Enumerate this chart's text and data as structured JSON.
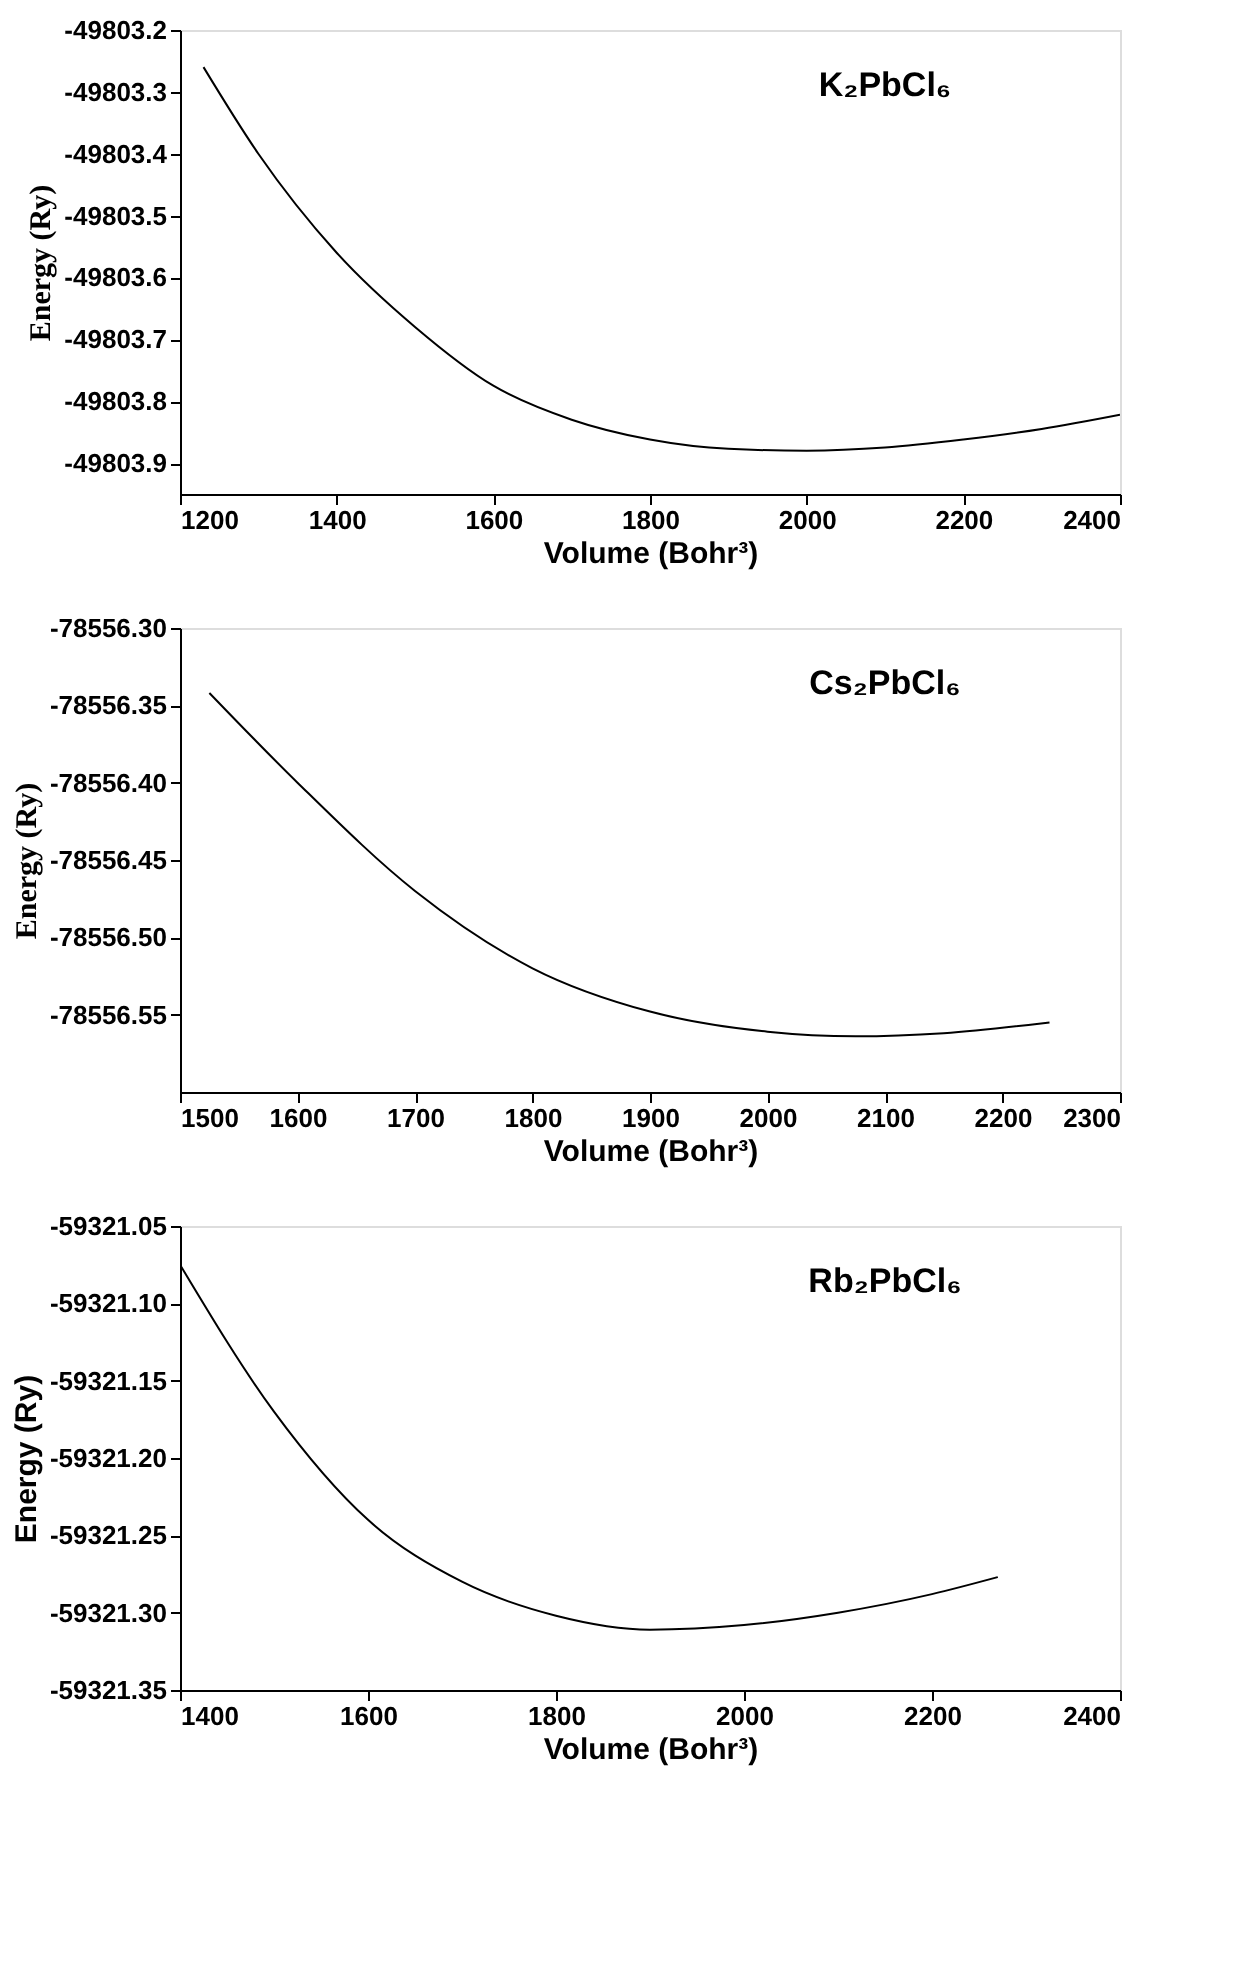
{
  "chart_data": [
    {
      "type": "line",
      "xlabel": "Volume (Bohr³)",
      "ylabel": "Energy (Ry)",
      "annotations": [
        "K₂PbCl₆"
      ],
      "marker": "none",
      "line_style": "solid",
      "grid": false,
      "x": [
        1230,
        1300,
        1400,
        1500,
        1600,
        1700,
        1800,
        1900,
        2000,
        2100,
        2200,
        2300,
        2400
      ],
      "series": [
        {
          "color": "#000000",
          "values": [
            -49803.26,
            -49803.4,
            -49803.56,
            -49803.68,
            -49803.775,
            -49803.83,
            -49803.862,
            -49803.877,
            -49803.88,
            -49803.875,
            -49803.862,
            -49803.845,
            -49803.822
          ]
        }
      ],
      "xlim": [
        1200,
        2400
      ],
      "xticks": [
        1200,
        1400,
        1600,
        1800,
        2000,
        2200,
        2400
      ],
      "ylim": [
        -49803.95,
        -49803.2
      ],
      "yticks": [
        -49803.2,
        -49803.3,
        -49803.4,
        -49803.5,
        -49803.6,
        -49803.7,
        -49803.8,
        -49803.9
      ]
    },
    {
      "type": "line",
      "xlabel": "Volume (Bohr³)",
      "ylabel": "Energy (Ry)",
      "annotations": [
        "Cs₂PbCl₆"
      ],
      "marker": "none",
      "line_style": "solid",
      "grid": false,
      "x": [
        1525,
        1600,
        1700,
        1800,
        1900,
        2000,
        2075,
        2150,
        2240
      ],
      "series": [
        {
          "color": "#000000",
          "values": [
            -78556.342,
            -78556.4,
            -78556.47,
            -78556.52,
            -78556.548,
            -78556.561,
            -78556.564,
            -78556.562,
            -78556.555
          ]
        }
      ],
      "xlim": [
        1500,
        2300
      ],
      "xticks": [
        1500,
        1600,
        1700,
        1800,
        1900,
        2000,
        2100,
        2200,
        2300
      ],
      "ylim": [
        -78556.6,
        -78556.3
      ],
      "yticks": [
        {
          "value": -78556.3,
          "label": "-78556.30"
        },
        {
          "value": -78556.35,
          "label": "-78556.35"
        },
        {
          "value": -78556.4,
          "label": "-78556.40"
        },
        {
          "value": -78556.45,
          "label": "-78556.45"
        },
        {
          "value": -78556.5,
          "label": "-78556.50"
        },
        {
          "value": -78556.55,
          "label": "-78556.55"
        }
      ]
    },
    {
      "type": "line",
      "xlabel": "Volume (Bohr³)",
      "ylabel": "Energy (Ry)",
      "annotations": [
        "Rb₂PbCl₆"
      ],
      "marker": "none",
      "line_style": "solid",
      "grid": false,
      "x": [
        1400,
        1500,
        1600,
        1700,
        1800,
        1900,
        2000,
        2100,
        2200,
        2270
      ],
      "series": [
        {
          "color": "#000000",
          "values": [
            -59321.075,
            -59321.17,
            -59321.24,
            -59321.28,
            -59321.302,
            -59321.311,
            -59321.308,
            -59321.3,
            -59321.288,
            -59321.277
          ]
        }
      ],
      "xlim": [
        1400,
        2400
      ],
      "xticks": [
        1400,
        1600,
        1800,
        2000,
        2200,
        2400
      ],
      "ylim": [
        -59321.35,
        -59321.05
      ],
      "yticks": [
        {
          "value": -59321.05,
          "label": "-59321.05"
        },
        {
          "value": -59321.1,
          "label": "-59321.10"
        },
        {
          "value": -59321.15,
          "label": "-59321.15"
        },
        {
          "value": -59321.2,
          "label": "-59321.20"
        },
        {
          "value": -59321.25,
          "label": "-59321.25"
        },
        {
          "value": -59321.3,
          "label": "-59321.30"
        },
        {
          "value": -59321.35,
          "label": "-59321.35"
        }
      ]
    }
  ]
}
